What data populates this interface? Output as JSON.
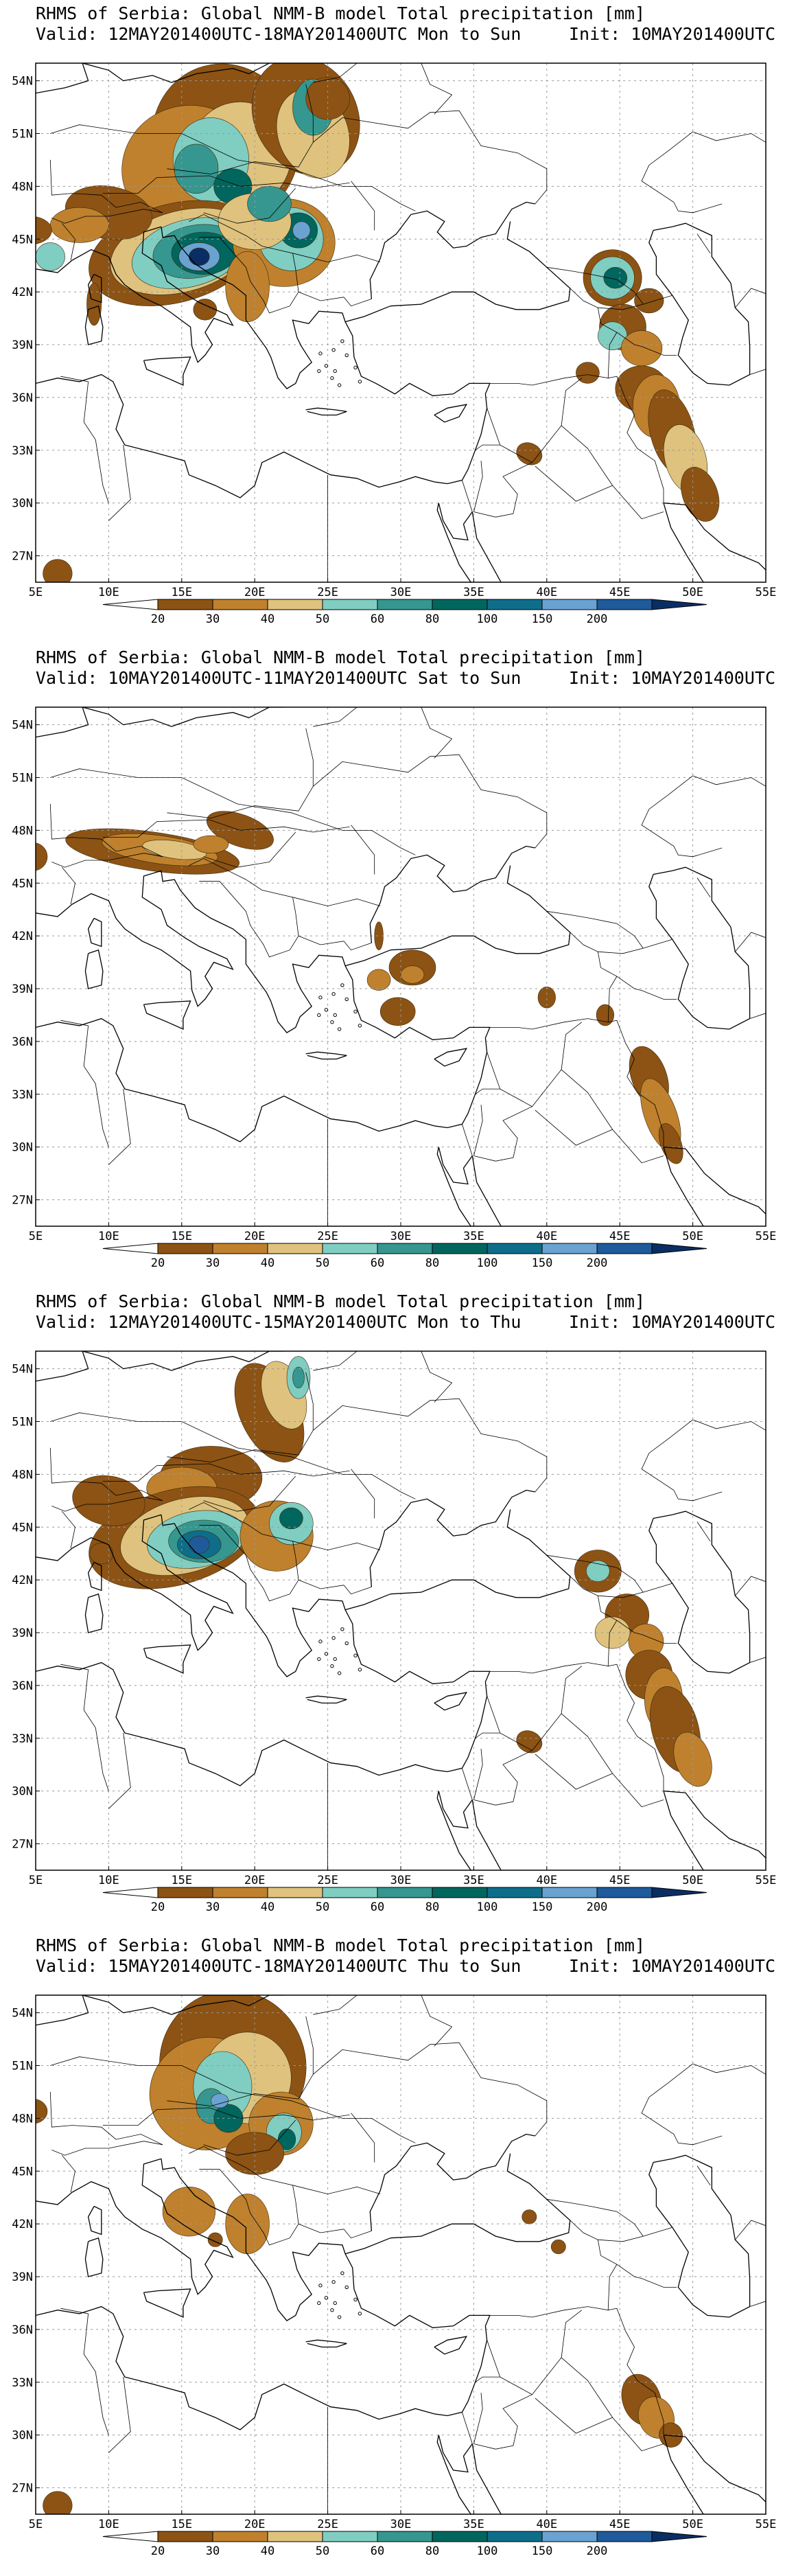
{
  "colors": {
    "ocean": "#ffffff",
    "land_border": "#000000",
    "grid": "#9a9a9a"
  },
  "colorbar": {
    "levels": [
      "20",
      "30",
      "40",
      "50",
      "60",
      "80",
      "100",
      "150",
      "200"
    ],
    "colors": [
      "#ffffff",
      "#8c5314",
      "#bf812d",
      "#dfc27d",
      "#80cdc1",
      "#35978f",
      "#01665e",
      "#0e6e8a",
      "#6aa2d2",
      "#1f5a9a",
      "#0a2e63"
    ]
  },
  "panels": [
    {
      "title": "RHMS of Serbia: Global NMM-B model Total precipitation [mm]",
      "valid": "Valid: 12MAY201400UTC-18MAY201400UTC Mon to Sun",
      "init": "Init: 10MAY201400UTC",
      "lat_labels": [
        "54N",
        "51N",
        "48N",
        "45N",
        "42N",
        "39N",
        "36N",
        "33N",
        "30N",
        "27N"
      ],
      "lon_labels": [
        "5E",
        "10E",
        "15E",
        "20E",
        "25E",
        "30E",
        "35E",
        "40E",
        "45E",
        "50E",
        "55E"
      ]
    },
    {
      "title": "RHMS of Serbia: Global NMM-B model Total precipitation [mm]",
      "valid": "Valid: 10MAY201400UTC-11MAY201400UTC Sat to Sun",
      "init": "Init: 10MAY201400UTC",
      "lat_labels": [
        "54N",
        "51N",
        "48N",
        "45N",
        "42N",
        "39N",
        "36N",
        "33N",
        "30N",
        "27N"
      ],
      "lon_labels": [
        "5E",
        "10E",
        "15E",
        "20E",
        "25E",
        "30E",
        "35E",
        "40E",
        "45E",
        "50E",
        "55E"
      ]
    },
    {
      "title": "RHMS of Serbia: Global NMM-B model Total precipitation [mm]",
      "valid": "Valid: 12MAY201400UTC-15MAY201400UTC Mon to Thu",
      "init": "Init: 10MAY201400UTC",
      "lat_labels": [
        "54N",
        "51N",
        "48N",
        "45N",
        "42N",
        "39N",
        "36N",
        "33N",
        "30N",
        "27N"
      ],
      "lon_labels": [
        "5E",
        "10E",
        "15E",
        "20E",
        "25E",
        "30E",
        "35E",
        "40E",
        "45E",
        "50E",
        "55E"
      ]
    },
    {
      "title": "RHMS of Serbia: Global NMM-B model Total precipitation [mm]",
      "valid": "Valid: 15MAY201400UTC-18MAY201400UTC Thu to Sun",
      "init": "Init: 10MAY201400UTC",
      "lat_labels": [
        "54N",
        "51N",
        "48N",
        "45N",
        "42N",
        "39N",
        "36N",
        "33N",
        "30N",
        "27N"
      ],
      "lon_labels": [
        "5E",
        "10E",
        "15E",
        "20E",
        "25E",
        "30E",
        "35E",
        "40E",
        "45E",
        "50E",
        "55E"
      ]
    }
  ]
}
